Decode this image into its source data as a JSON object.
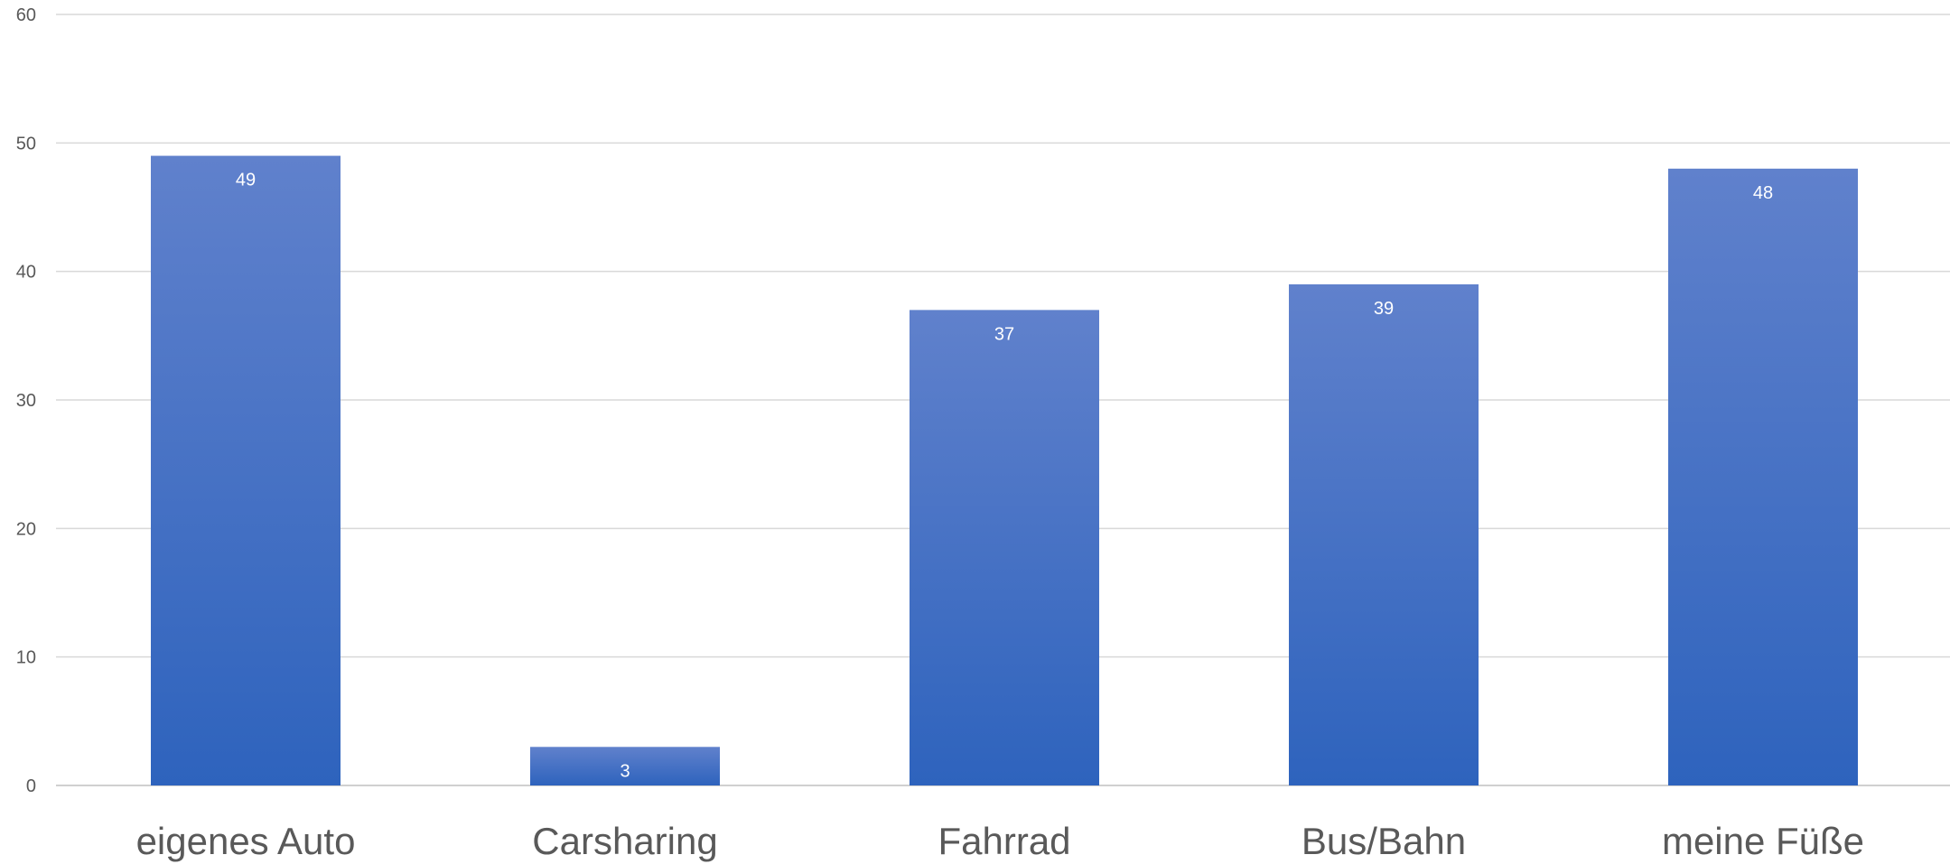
{
  "chart_data": {
    "type": "bar",
    "categories": [
      "eigenes Auto",
      "Carsharing",
      "Fahrrad",
      "Bus/Bahn",
      "meine Füße"
    ],
    "values": [
      49,
      3,
      37,
      39,
      48
    ],
    "data_labels": [
      "49",
      "3",
      "37",
      "39",
      "48"
    ],
    "ylim": [
      0,
      60
    ],
    "yticks": [
      0,
      10,
      20,
      30,
      40,
      50,
      60
    ],
    "grid": true,
    "colors": {
      "bar_top": "#6081cc",
      "bar_bottom": "#2e63bd",
      "grid": "#d9d9d9",
      "text": "#595959"
    }
  }
}
